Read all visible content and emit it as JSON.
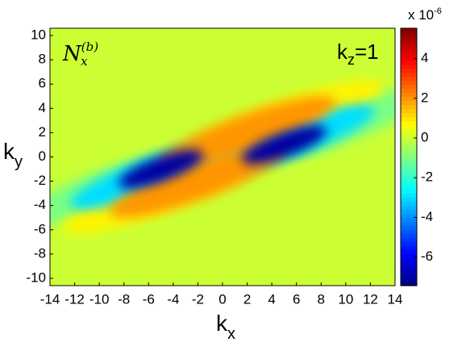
{
  "chart_data": {
    "type": "contour",
    "annotation": {
      "base": "N",
      "sub": "x",
      "sup": "(b)"
    },
    "label": {
      "base": "k",
      "sub": "z",
      "rest": "=1"
    },
    "x_label": {
      "base": "k",
      "sub": "x"
    },
    "y_label": {
      "base": "k",
      "sub": "y"
    },
    "xlim": [
      -14,
      14
    ],
    "xticks": [
      -14,
      -12,
      -10,
      -8,
      -6,
      -4,
      -2,
      0,
      2,
      4,
      6,
      8,
      10,
      12,
      14
    ],
    "ylim": [
      -10.6,
      10.6
    ],
    "yticks": [
      -10,
      -8,
      -6,
      -4,
      -2,
      0,
      2,
      4,
      6,
      8,
      10
    ],
    "background": 0,
    "blobs": [
      {
        "x": -9,
        "y": -2.5,
        "value": -1
      },
      {
        "x": 9,
        "y": 2.5,
        "value": -1
      },
      {
        "x": -5,
        "y": -3,
        "value": 0.8
      },
      {
        "x": 5,
        "y": 3,
        "value": 0.8
      },
      {
        "x": -6,
        "y": -1.6,
        "value": -3
      },
      {
        "x": 6,
        "y": 1.6,
        "value": -3
      },
      {
        "x": -2,
        "y": -2,
        "value": 2
      },
      {
        "x": 2,
        "y": 2,
        "value": 2
      },
      {
        "x": -5,
        "y": -1,
        "value": -7
      },
      {
        "x": 5,
        "y": 1,
        "value": -7
      }
    ],
    "colormap": "jet",
    "clim": [
      -7.44,
      5.53
    ],
    "cticks": [
      -6,
      -4,
      -2,
      0,
      2,
      4
    ],
    "colorbar_label": {
      "base": "x 10",
      "sup": "-6"
    }
  }
}
